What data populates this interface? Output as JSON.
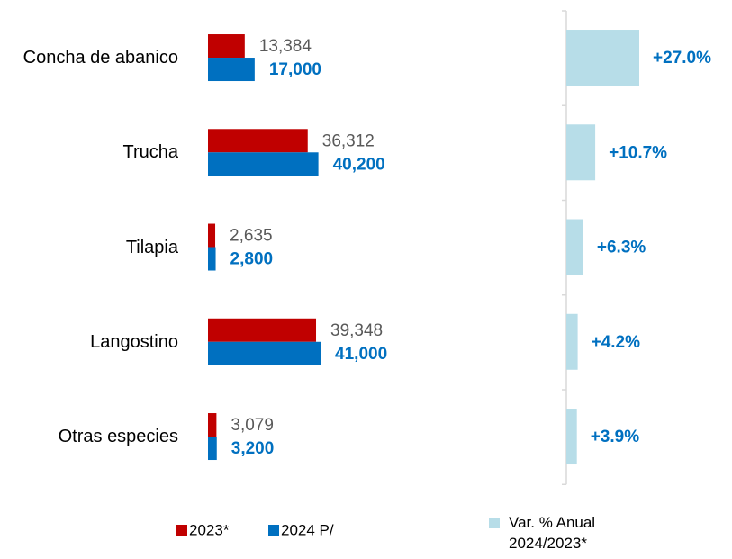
{
  "chart_data": [
    {
      "type": "bar",
      "orientation": "horizontal",
      "categories": [
        "Concha de abanico",
        "Trucha",
        "Tilapia",
        "Langostino",
        "Otras especies"
      ],
      "series": [
        {
          "name": "2023*",
          "color": "#c00000",
          "values": [
            13384,
            36312,
            2635,
            39348,
            3079
          ],
          "value_labels": [
            "13,384",
            "36,312",
            "2,635",
            "39,348",
            "3,079"
          ]
        },
        {
          "name": "2024 P/",
          "color": "#0070c0",
          "values": [
            17000,
            40200,
            2800,
            41000,
            3200
          ],
          "value_labels": [
            "17,000",
            "40,200",
            "2,800",
            "41,000",
            "3,200"
          ]
        }
      ],
      "xlim": [
        0,
        100000
      ]
    },
    {
      "type": "bar",
      "orientation": "horizontal",
      "series": [
        {
          "name": "Var. % Anual 2024/2023*",
          "color": "#b7dde8",
          "values": [
            27.0,
            10.7,
            6.3,
            4.2,
            3.9
          ],
          "value_labels": [
            "+27.0%",
            "+10.7%",
            "+6.3%",
            "+4.2%",
            "+3.9%"
          ]
        }
      ],
      "xlim": [
        0,
        30
      ]
    }
  ]
}
